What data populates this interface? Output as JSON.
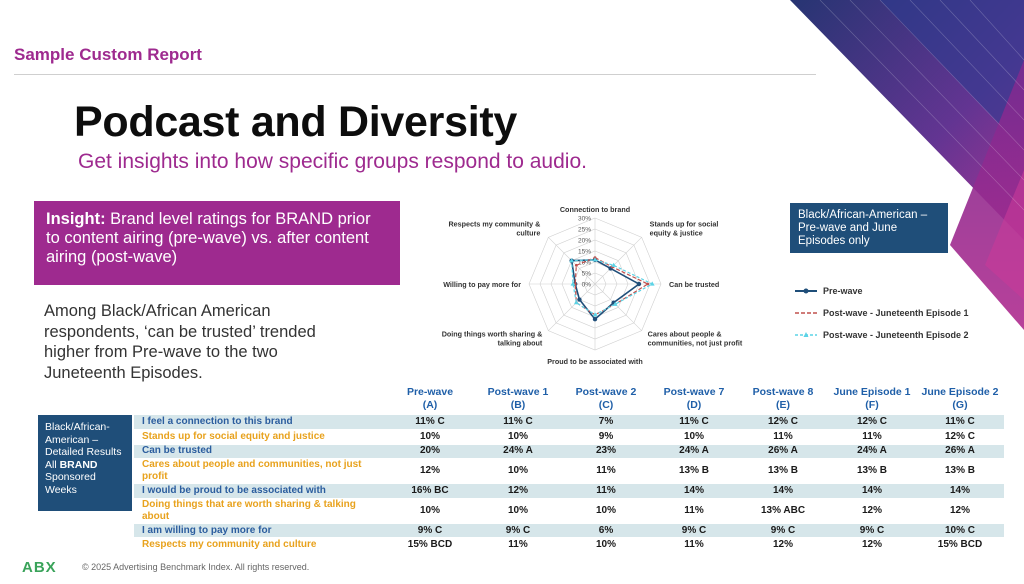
{
  "header": {
    "report_label": "Sample Custom Report",
    "title": "Podcast and Diversity",
    "subtitle": "Get insights into how specific groups respond to audio."
  },
  "insight": {
    "lead": "Insight:",
    "text": "Brand level ratings for BRAND prior to content airing (pre-wave) vs. after content airing (post-wave)"
  },
  "body_text": "Among Black/African American respondents, ‘can be trusted’ trended higher from Pre-wave to the two Juneteenth Episodes.",
  "chart_label": "Black/African-American – Pre-wave and June Episodes only",
  "chart_data": {
    "type": "radar",
    "axes": [
      "Connection to brand",
      "Stands up for social equity & justice",
      "Can be trusted",
      "Cares about people & communities, not just profit",
      "Proud to be associated with",
      "Doing things worth sharing & talking about",
      "Willing to pay more for",
      "Respects my community & culture"
    ],
    "ticks": [
      "30%",
      "25%",
      "20%",
      "15%",
      "10%",
      "5%",
      "0%"
    ],
    "range": [
      0,
      30
    ],
    "series": [
      {
        "name": "Pre-wave",
        "values": [
          11,
          10,
          20,
          12,
          16,
          10,
          9,
          15
        ],
        "color": "#1f4e79"
      },
      {
        "name": "Post-wave - Juneteenth Episode 1",
        "values": [
          12,
          11,
          24,
          13,
          14,
          12,
          9,
          12
        ],
        "color": "#c0504d"
      },
      {
        "name": "Post-wave - Juneteenth Episode 2",
        "values": [
          11,
          12,
          26,
          13,
          14,
          12,
          10,
          15
        ],
        "color": "#5bd3e6"
      }
    ]
  },
  "table": {
    "side_label_1": "Black/African-American – Detailed Results All",
    "side_brand": "BRAND",
    "side_label_2": "Sponsored Weeks",
    "headers": [
      "Pre-wave (A)",
      "Post-wave 1 (B)",
      "Post-wave 2 (C)",
      "Post-wave 7 (D)",
      "Post-wave 8 (E)",
      "June Episode 1 (F)",
      "June Episode 2 (G)"
    ],
    "rows": [
      {
        "label": "I feel a connection to this brand",
        "cells": [
          "11% C",
          "11% C",
          "7%",
          "11% C",
          "12% C",
          "12% C",
          "11% C"
        ]
      },
      {
        "label": "Stands up for social equity and justice",
        "cells": [
          "10%",
          "10%",
          "9%",
          "10%",
          "11%",
          "11%",
          "12% C"
        ]
      },
      {
        "label": "Can be trusted",
        "cells": [
          "20%",
          "24% A",
          "23%",
          "24% A",
          "26% A",
          "24% A",
          "26% A"
        ]
      },
      {
        "label": "Cares about people and communities, not just profit",
        "cells": [
          "12%",
          "10%",
          "11%",
          "13% B",
          "13% B",
          "13% B",
          "13% B"
        ]
      },
      {
        "label": "I would be proud to be associated with",
        "cells": [
          "16% BC",
          "12%",
          "11%",
          "14%",
          "14%",
          "14%",
          "14%"
        ]
      },
      {
        "label": "Doing things that are worth sharing & talking about",
        "cells": [
          "10%",
          "10%",
          "10%",
          "11%",
          "13% ABC",
          "12%",
          "12%"
        ]
      },
      {
        "label": "I am willing to pay more for",
        "cells": [
          "9% C",
          "9% C",
          "6%",
          "9% C",
          "9% C",
          "9% C",
          "10% C"
        ]
      },
      {
        "label": "Respects my community and culture",
        "cells": [
          "15% BCD",
          "11%",
          "10%",
          "11%",
          "12%",
          "12%",
          "15% BCD"
        ]
      }
    ]
  },
  "footer": {
    "logo": "ABX",
    "copyright": "© 2025 Advertising Benchmark Index. All rights reserved."
  },
  "colors": {
    "accent_purple": "#9e2a8f",
    "navy": "#1f4e79",
    "row_band": "#d6e6ea"
  }
}
